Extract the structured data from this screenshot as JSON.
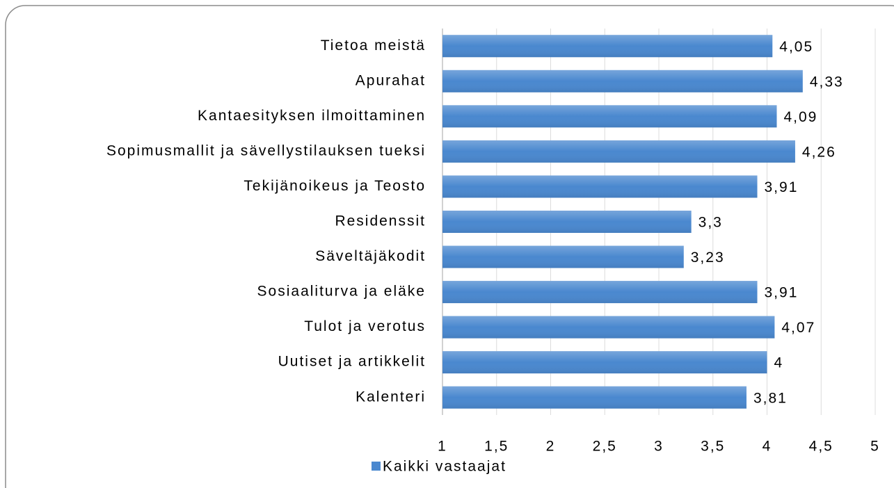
{
  "chart_data": {
    "type": "bar",
    "orientation": "horizontal",
    "categories": [
      "Tietoa meistä",
      "Apurahat",
      "Kantaesityksen ilmoittaminen",
      "Sopimusmallit ja sävellystilauksen tueksi",
      "Tekijänoikeus ja Teosto",
      "Residenssit",
      "Säveltäjäkodit",
      "Sosiaaliturva ja eläke",
      "Tulot ja verotus",
      "Uutiset ja artikkelit",
      "Kalenteri"
    ],
    "series": [
      {
        "name": "Kaikki vastaajat",
        "color": "#4a88cf",
        "values": [
          4.05,
          4.33,
          4.09,
          4.26,
          3.91,
          3.3,
          3.23,
          3.91,
          4.07,
          4,
          3.81
        ],
        "value_labels": [
          "4,05",
          "4,33",
          "4,09",
          "4,26",
          "3,91",
          "3,3",
          "3,23",
          "3,91",
          "4,07",
          "4",
          "3,81"
        ]
      }
    ],
    "xlim": [
      1,
      5
    ],
    "xticks": [
      1,
      {
        "value": 1.5,
        "label": "1,5"
      },
      2,
      {
        "value": 2.5,
        "label": "2,5"
      },
      3,
      {
        "value": 3.5,
        "label": "3,5"
      },
      4,
      {
        "value": 4.5,
        "label": "4,5"
      },
      5
    ],
    "grid": true,
    "legend": "bottom"
  }
}
